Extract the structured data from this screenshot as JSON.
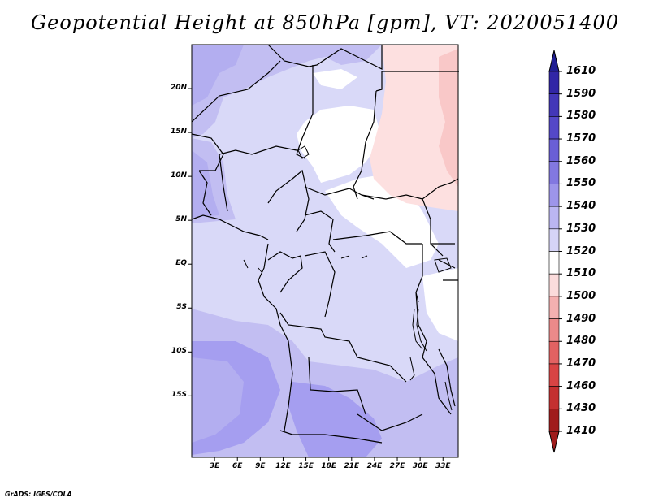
{
  "title": "Geopotential Height at 850hPa [gpm], VT: 2020051400",
  "footer": "GrADS: IGES/COLA",
  "map": {
    "lon_range_deg": [
      0,
      35
    ],
    "lat_range_deg": [
      -22,
      25
    ],
    "lat_ticks": [
      {
        "label": "20N",
        "value": 20
      },
      {
        "label": "15N",
        "value": 15
      },
      {
        "label": "10N",
        "value": 10
      },
      {
        "label": "5N",
        "value": 5
      },
      {
        "label": "EQ",
        "value": 0
      },
      {
        "label": "5S",
        "value": -5
      },
      {
        "label": "10S",
        "value": -10
      },
      {
        "label": "15S",
        "value": -15
      }
    ],
    "lon_ticks": [
      {
        "label": "3E",
        "value": 3
      },
      {
        "label": "6E",
        "value": 6
      },
      {
        "label": "9E",
        "value": 9
      },
      {
        "label": "12E",
        "value": 12
      },
      {
        "label": "15E",
        "value": 15
      },
      {
        "label": "18E",
        "value": 18
      },
      {
        "label": "21E",
        "value": 21
      },
      {
        "label": "24E",
        "value": 24
      },
      {
        "label": "27E",
        "value": 27
      },
      {
        "label": "30E",
        "value": 30
      },
      {
        "label": "33E",
        "value": 33
      }
    ]
  },
  "colorbar": {
    "labels": [
      "1610",
      "1590",
      "1580",
      "1570",
      "1560",
      "1550",
      "1540",
      "1530",
      "1520",
      "1510",
      "1500",
      "1490",
      "1480",
      "1470",
      "1460",
      "1430",
      "1410"
    ],
    "colors": [
      "#211f94",
      "#3126a6",
      "#4337b8",
      "#5448c8",
      "#6a5fd6",
      "#8278e0",
      "#9d95ea",
      "#bbb6f2",
      "#d6d4f7",
      "#ffffff",
      "#fbdcdc",
      "#f4b0b0",
      "#ec8a8a",
      "#e26262",
      "#d84444",
      "#c43030",
      "#a01c1c"
    ]
  },
  "palette": {
    "c1530": "#c2bef2",
    "c1520": "#d9d9f8",
    "c1540": "#a59ef0",
    "c1510": "#ffffff",
    "c1500": "#fde0e0",
    "c1490": "#f9c8c8"
  }
}
